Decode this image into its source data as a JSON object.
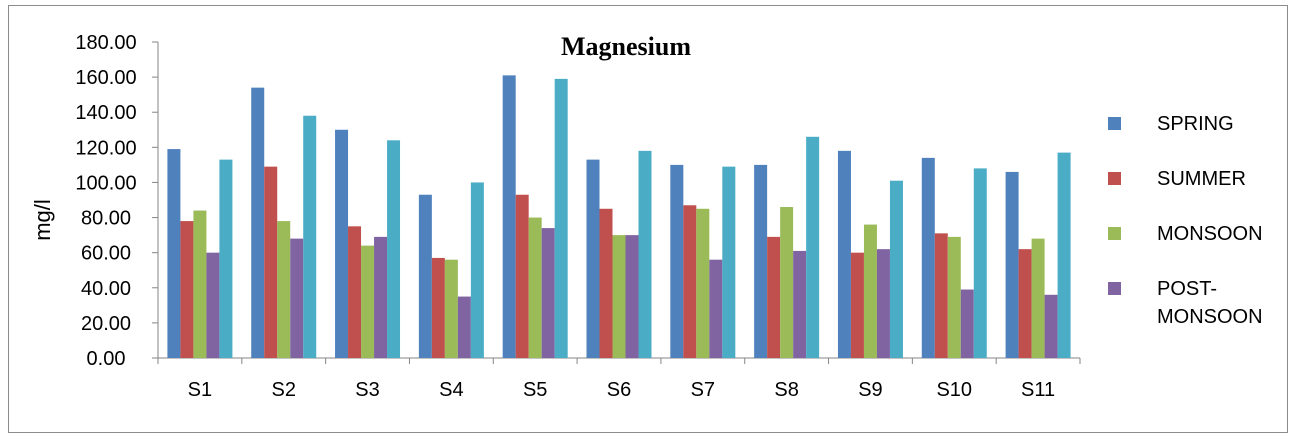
{
  "chart_data": {
    "type": "bar",
    "title": "Magnesium",
    "xlabel": "",
    "ylabel": "mg/l",
    "ylim": [
      0,
      180
    ],
    "yticks": [
      "0.00",
      "20.00",
      "40.00",
      "60.00",
      "80.00",
      "100.00",
      "120.00",
      "140.00",
      "160.00",
      "180.00"
    ],
    "grid": false,
    "legend_position": "right",
    "categories": [
      "S1",
      "S2",
      "S3",
      "S4",
      "S5",
      "S6",
      "S7",
      "S8",
      "S9",
      "S10",
      "S11"
    ],
    "series": [
      {
        "name": "SPRING",
        "color": "#4F81BD",
        "values": [
          119,
          154,
          130,
          93,
          161,
          113,
          110,
          110,
          118,
          114,
          106
        ]
      },
      {
        "name": "SUMMER",
        "color": "#C0504D",
        "values": [
          78,
          109,
          75,
          57,
          93,
          85,
          87,
          69,
          60,
          71,
          62
        ]
      },
      {
        "name": "MONSOON",
        "color": "#9BBB59",
        "values": [
          84,
          78,
          64,
          56,
          80,
          70,
          85,
          86,
          76,
          69,
          68
        ]
      },
      {
        "name": "POST-MONSOON",
        "color": "#8064A2",
        "values": [
          60,
          68,
          69,
          35,
          74,
          70,
          56,
          61,
          62,
          39,
          36
        ]
      },
      {
        "color": "#4BACC6",
        "values": [
          113,
          138,
          124,
          100,
          159,
          118,
          109,
          126,
          101,
          108,
          117
        ]
      }
    ]
  }
}
